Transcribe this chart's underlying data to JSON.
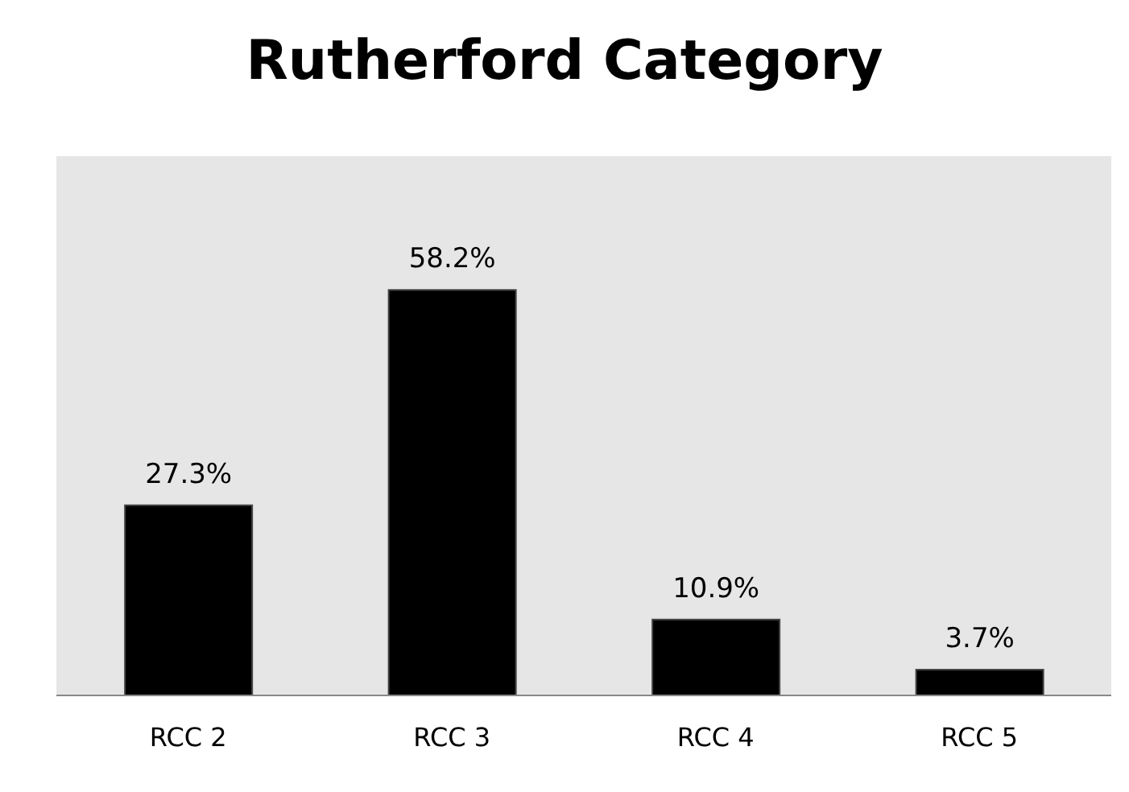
{
  "chart_data": {
    "type": "bar",
    "title": "Rutherford Category",
    "categories": [
      "RCC 2",
      "RCC 3",
      "RCC 4",
      "RCC 5"
    ],
    "values": [
      27.3,
      58.2,
      10.9,
      3.7
    ],
    "value_labels": [
      "27.3%",
      "58.2%",
      "10.9%",
      "3.7%"
    ],
    "color": "#000000"
  }
}
